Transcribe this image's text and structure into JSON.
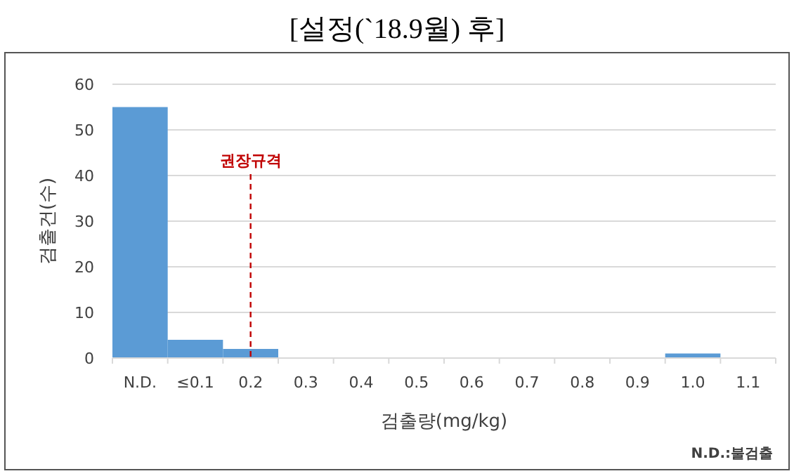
{
  "chart_data": {
    "type": "bar",
    "title": "[설정(`18.9월)  후]",
    "xlabel": "검출량(mg/kg)",
    "ylabel": "검출건(수)",
    "categories": [
      "N.D.",
      "≤0.1",
      "0.2",
      "0.3",
      "0.4",
      "0.5",
      "0.6",
      "0.7",
      "0.8",
      "0.9",
      "1.0",
      "1.1"
    ],
    "values": [
      55,
      4,
      2,
      0,
      0,
      0,
      0,
      0,
      0,
      0,
      1,
      0
    ],
    "color": "#5b9bd5",
    "ylim": [
      0,
      60
    ],
    "yticks": [
      0,
      10,
      20,
      30,
      40,
      50,
      60
    ],
    "grid": "y",
    "ref_lines": [
      {
        "axis": "x",
        "value": "0.2",
        "label": "권장규격",
        "color": "#c00000",
        "line_style": "dashed"
      }
    ],
    "annotations": [
      "N.D.:불검출"
    ]
  }
}
